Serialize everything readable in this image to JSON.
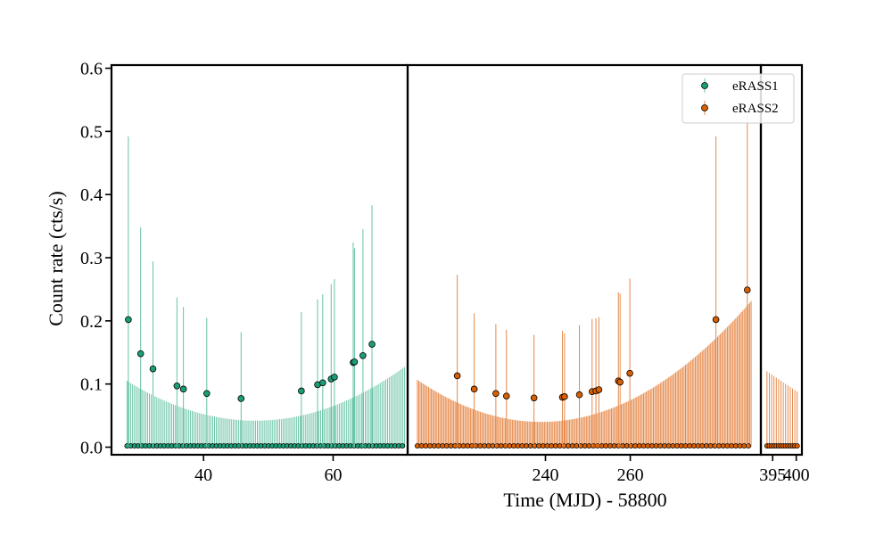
{
  "chart_data": {
    "type": "scatter",
    "xlabel": "Time (MJD) - 58800",
    "ylabel": "Count rate (cts/s)",
    "ylim": [
      -0.012,
      0.605
    ],
    "y_ticks": [
      "0.0",
      "0.1",
      "0.2",
      "0.3",
      "0.4",
      "0.5",
      "0.6"
    ],
    "y_tick_values": [
      0.0,
      0.1,
      0.2,
      0.3,
      0.4,
      0.5,
      0.6
    ],
    "broken_x_axis": true,
    "panels": [
      {
        "xlim": [
          25.8,
          71.5
        ],
        "ticks": [
          "40",
          "60"
        ],
        "tick_values": [
          40,
          60
        ]
      },
      {
        "xlim": [
          207.5,
          290.8
        ],
        "ticks": [
          "240",
          "260"
        ],
        "tick_values": [
          240,
          260
        ]
      },
      {
        "xlim": [
          392.5,
          401.2
        ],
        "ticks": [
          "395",
          "400"
        ],
        "tick_values": [
          395,
          400
        ]
      }
    ],
    "legend": {
      "position": "top-right",
      "entries": [
        "eRASS1",
        "eRASS2"
      ]
    },
    "series": [
      {
        "name": "eRASS1",
        "color": "#1b9e77",
        "errorbar_color": "#66c2a5",
        "time_range": [
          28.2,
          71.0
        ],
        "samples": 150,
        "upper_limit_curve": {
          "t0": 48.0,
          "amplitude": 0.085,
          "scale": 23.0,
          "floor": 0.042
        },
        "detections": [
          {
            "x": 28.4,
            "y": 0.202,
            "err": 0.29
          },
          {
            "x": 30.3,
            "y": 0.148,
            "err": 0.2
          },
          {
            "x": 32.2,
            "y": 0.124,
            "err": 0.17
          },
          {
            "x": 35.9,
            "y": 0.097,
            "err": 0.14
          },
          {
            "x": 36.9,
            "y": 0.092,
            "err": 0.13
          },
          {
            "x": 40.5,
            "y": 0.085,
            "err": 0.12
          },
          {
            "x": 45.8,
            "y": 0.077,
            "err": 0.105
          },
          {
            "x": 55.1,
            "y": 0.089,
            "err": 0.125
          },
          {
            "x": 57.6,
            "y": 0.099,
            "err": 0.135
          },
          {
            "x": 58.4,
            "y": 0.102,
            "err": 0.14
          },
          {
            "x": 59.7,
            "y": 0.108,
            "err": 0.15
          },
          {
            "x": 60.2,
            "y": 0.111,
            "err": 0.155
          },
          {
            "x": 63.1,
            "y": 0.134,
            "err": 0.19
          },
          {
            "x": 63.3,
            "y": 0.135,
            "err": 0.18
          },
          {
            "x": 64.6,
            "y": 0.145,
            "err": 0.2
          },
          {
            "x": 66.0,
            "y": 0.163,
            "err": 0.22
          }
        ]
      },
      {
        "name": "eRASS2",
        "color": "#d95f02",
        "errorbar_color": "#e6894a",
        "time_range": [
          209.8,
          288.5
        ],
        "samples": 240,
        "upper_limit_curve": {
          "t0": 239.0,
          "amplitude": 0.085,
          "scale": 33.0,
          "floor": 0.04
        },
        "extra_time_range": [
          393.8,
          400.2
        ],
        "extra_samples": 14,
        "extra_curve": {
          "t0": 393.8,
          "start": 0.12,
          "end": 0.088
        },
        "detections": [
          {
            "x": 219.2,
            "y": 0.113,
            "err": 0.16
          },
          {
            "x": 223.2,
            "y": 0.092,
            "err": 0.12
          },
          {
            "x": 228.3,
            "y": 0.085,
            "err": 0.11
          },
          {
            "x": 230.8,
            "y": 0.081,
            "err": 0.105
          },
          {
            "x": 237.3,
            "y": 0.078,
            "err": 0.1
          },
          {
            "x": 244.0,
            "y": 0.079,
            "err": 0.105
          },
          {
            "x": 244.5,
            "y": 0.08,
            "err": 0.1
          },
          {
            "x": 248.0,
            "y": 0.083,
            "err": 0.11
          },
          {
            "x": 251.0,
            "y": 0.088,
            "err": 0.115
          },
          {
            "x": 251.9,
            "y": 0.089,
            "err": 0.115
          },
          {
            "x": 252.6,
            "y": 0.091,
            "err": 0.115
          },
          {
            "x": 257.2,
            "y": 0.105,
            "err": 0.14
          },
          {
            "x": 257.6,
            "y": 0.103,
            "err": 0.14
          },
          {
            "x": 259.9,
            "y": 0.117,
            "err": 0.15
          },
          {
            "x": 280.2,
            "y": 0.202,
            "err": 0.29
          },
          {
            "x": 287.6,
            "y": 0.249,
            "err": 0.28
          }
        ]
      }
    ]
  }
}
